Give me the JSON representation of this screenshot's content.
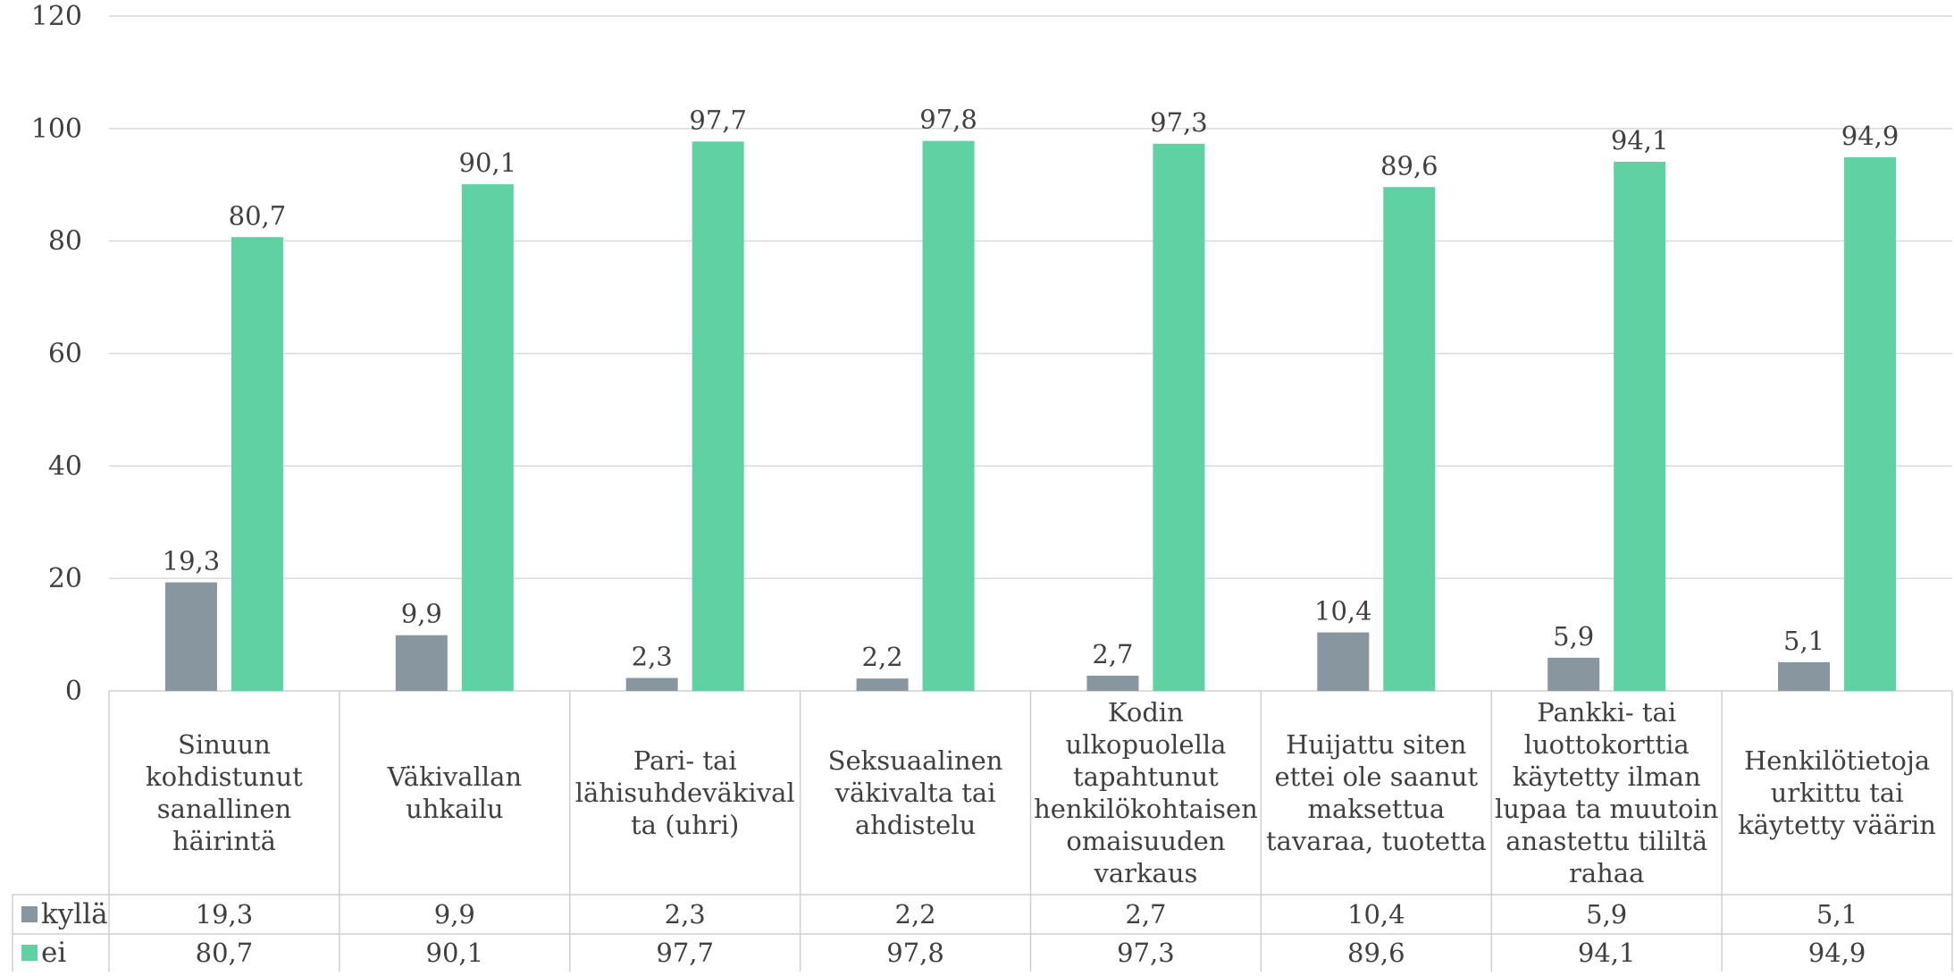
{
  "chart_data": {
    "type": "bar",
    "categories": [
      [
        "Sinuun",
        "kohdistunut",
        "sanallinen",
        "häirintä"
      ],
      [
        "Väkivallan",
        "uhkailu"
      ],
      [
        "Pari- tai",
        "lähisuhdeväkival",
        "ta (uhri)"
      ],
      [
        "Seksuaalinen",
        "väkivalta tai",
        "ahdistelu"
      ],
      [
        "Kodin",
        "ulkopuolella",
        "tapahtunut",
        "henkilökohtaisen",
        "omaisuuden",
        "varkaus"
      ],
      [
        "Huijattu siten",
        "ettei ole saanut",
        "maksettua",
        "tavaraa, tuotetta"
      ],
      [
        "Pankki- tai",
        "luottokorttia",
        "käytetty ilman",
        "lupaa ta muutoin",
        "anastettu tililtä",
        "rahaa"
      ],
      [
        "Henkilötietoja",
        "urkittu tai",
        "käytetty väärin"
      ]
    ],
    "series": [
      {
        "name": "kyllä",
        "color": "#8896a0",
        "values": [
          19.3,
          9.9,
          2.3,
          2.2,
          2.7,
          10.4,
          5.9,
          5.1
        ],
        "labels": [
          "19,3",
          "9,9",
          "2,3",
          "2,2",
          "2,7",
          "10,4",
          "5,9",
          "5,1"
        ]
      },
      {
        "name": "ei",
        "color": "#5fd1a3",
        "values": [
          80.7,
          90.1,
          97.7,
          97.8,
          97.3,
          89.6,
          94.1,
          94.9
        ],
        "labels": [
          "80,7",
          "90,1",
          "97,7",
          "97,8",
          "97,3",
          "89,6",
          "94,1",
          "94,9"
        ]
      }
    ],
    "yticks": [
      "0",
      "20",
      "40",
      "60",
      "80",
      "100",
      "120"
    ],
    "ylim": [
      0,
      120
    ],
    "grid": true,
    "legend": "data-table"
  }
}
